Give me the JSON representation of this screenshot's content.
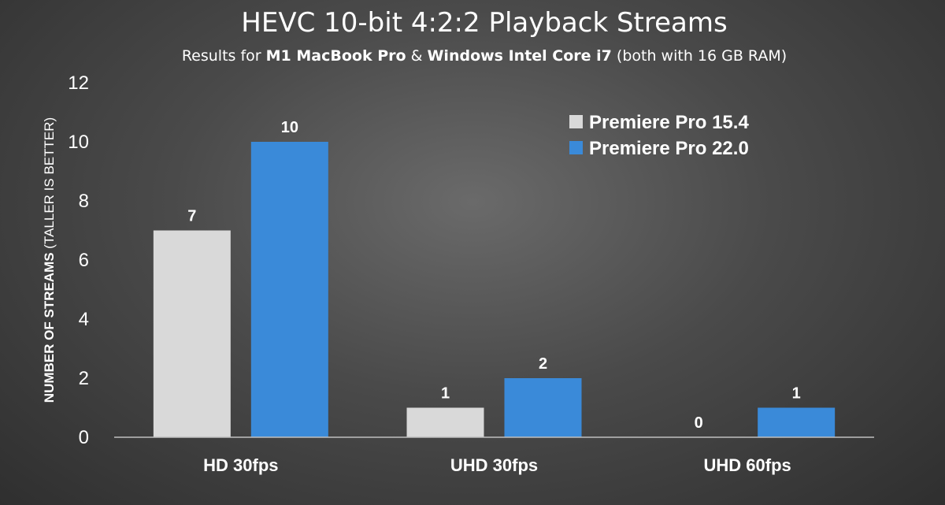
{
  "chart_data": {
    "type": "bar",
    "title": "HEVC 10-bit 4:2:2 Playback Streams",
    "subtitle": {
      "pre": "Results for ",
      "bold1": "M1 MacBook Pro",
      "mid": " & ",
      "bold2": "Windows Intel Core i7",
      "post": " (both with 16 GB RAM)"
    },
    "ylabel": {
      "bold": "NUMBER OF STREAMS",
      "normal": " (TALLER IS BETTER)"
    },
    "xlabel": "",
    "ylim": [
      0,
      12
    ],
    "yticks": [
      0,
      2,
      4,
      6,
      8,
      10,
      12
    ],
    "categories": [
      "HD 30fps",
      "UHD 30fps",
      "UHD 60fps"
    ],
    "series": [
      {
        "name": "Premiere Pro 15.4",
        "color": "#d9d9d9",
        "values": [
          7,
          1,
          0
        ]
      },
      {
        "name": "Premiere Pro 22.0",
        "color": "#3a8ad9",
        "values": [
          10,
          2,
          1
        ]
      }
    ],
    "grid": false,
    "legend_position": "top-right",
    "data_labels": true
  }
}
